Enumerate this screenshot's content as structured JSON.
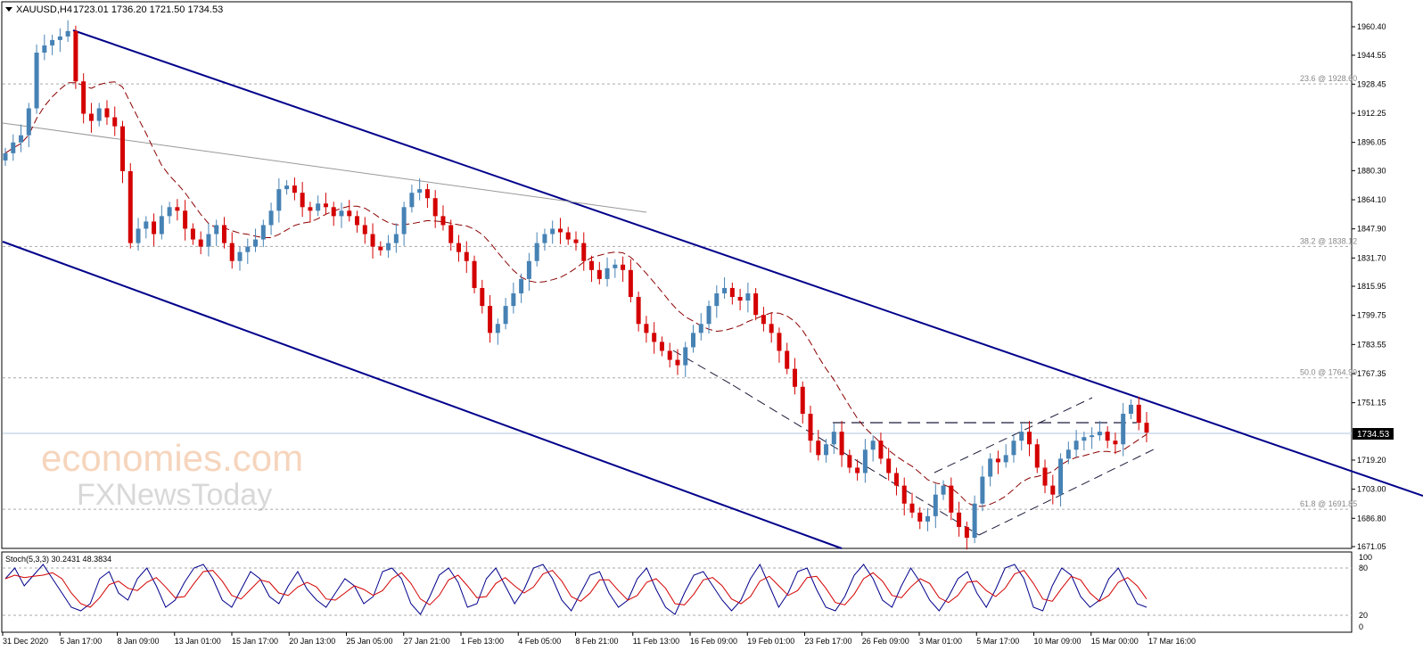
{
  "header": {
    "symbol_tf": "XAUUSD,H4",
    "ohlc": "1723.01 1736.20 1721.50 1734.53"
  },
  "colors": {
    "bull": "#4682b4",
    "bear": "#d40000",
    "channel": "#00008b",
    "ma": "#8b0000",
    "stoch_main": "#00008b",
    "stoch_signal": "#d40000",
    "fib_grid": "#aaaaaa",
    "price_tag_bg": "#000000"
  },
  "price_axis": {
    "ticks": [
      "1960.40",
      "1944.55",
      "1928.45",
      "1912.25",
      "1896.05",
      "1880.30",
      "1864.10",
      "1847.90",
      "1831.70",
      "1815.95",
      "1799.75",
      "1783.55",
      "1767.35",
      "1751.15",
      "1719.20",
      "1703.00",
      "1686.80",
      "1671.05"
    ],
    "current_price": "1734.53"
  },
  "fib_labels": [
    {
      "label": "23.6 @ 1928.60",
      "price": 1928.6
    },
    {
      "label": "38.2 @ 1838.12",
      "price": 1838.12
    },
    {
      "label": "50.0 @ 1764.99",
      "price": 1764.99
    },
    {
      "label": "61.8 @ 1691.85",
      "price": 1691.85
    }
  ],
  "time_axis": {
    "labels": [
      "31 Dec 2020",
      "5 Jan 17:00",
      "8 Jan 09:00",
      "13 Jan 01:00",
      "15 Jan 17:00",
      "20 Jan 13:00",
      "25 Jan 05:00",
      "27 Jan 21:00",
      "1 Feb 13:00",
      "4 Feb 05:00",
      "8 Feb 21:00",
      "11 Feb 13:00",
      "16 Feb 09:00",
      "19 Feb 01:00",
      "23 Feb 17:00",
      "26 Feb 09:00",
      "3 Mar 01:00",
      "5 Mar 17:00",
      "10 Mar 09:00",
      "15 Mar 00:00",
      "17 Mar 16:00"
    ]
  },
  "stoch": {
    "label": "Stoch(5,3,3) 30.2431 48.3834",
    "axis_ticks": [
      "100",
      "80",
      "20",
      "0"
    ]
  },
  "watermark": {
    "line1": "economies.com",
    "line2": "FXNewsToday"
  },
  "chart_data": {
    "type": "candlestick",
    "symbol": "XAUUSD",
    "timeframe": "H4",
    "ylim": [
      1671.05,
      1968.0
    ],
    "closes": [
      1890,
      1896,
      1900,
      1915,
      1946,
      1950,
      1953,
      1955,
      1958,
      1930,
      1912,
      1908,
      1915,
      1910,
      1905,
      1880,
      1840,
      1848,
      1852,
      1845,
      1855,
      1860,
      1858,
      1848,
      1842,
      1838,
      1845,
      1850,
      1840,
      1830,
      1835,
      1838,
      1842,
      1850,
      1858,
      1870,
      1872,
      1868,
      1860,
      1858,
      1862,
      1860,
      1855,
      1858,
      1855,
      1850,
      1845,
      1838,
      1836,
      1840,
      1845,
      1860,
      1868,
      1870,
      1865,
      1855,
      1850,
      1840,
      1835,
      1830,
      1815,
      1805,
      1790,
      1795,
      1805,
      1812,
      1820,
      1830,
      1840,
      1845,
      1848,
      1846,
      1842,
      1840,
      1830,
      1825,
      1820,
      1826,
      1828,
      1825,
      1810,
      1795,
      1790,
      1785,
      1780,
      1775,
      1772,
      1782,
      1790,
      1795,
      1805,
      1812,
      1815,
      1810,
      1808,
      1812,
      1800,
      1795,
      1790,
      1780,
      1770,
      1760,
      1745,
      1730,
      1722,
      1728,
      1735,
      1722,
      1715,
      1712,
      1725,
      1730,
      1720,
      1712,
      1705,
      1695,
      1690,
      1685,
      1688,
      1700,
      1705,
      1690,
      1682,
      1676,
      1695,
      1710,
      1720,
      1718,
      1722,
      1730,
      1735,
      1728,
      1715,
      1705,
      1700,
      1720,
      1725,
      1730,
      1732,
      1733,
      1735,
      1730,
      1728,
      1745,
      1750,
      1740,
      1734.53
    ],
    "sma_note": "dashed moving average overlay",
    "stoch_main": [
      70,
      85,
      60,
      75,
      90,
      70,
      50,
      30,
      25,
      35,
      70,
      80,
      50,
      40,
      70,
      85,
      60,
      30,
      40,
      65,
      85,
      90,
      70,
      40,
      30,
      55,
      80,
      70,
      45,
      35,
      60,
      80,
      55,
      40,
      30,
      50,
      70,
      60,
      35,
      45,
      80,
      85,
      70,
      35,
      20,
      45,
      75,
      85,
      65,
      30,
      35,
      70,
      85,
      60,
      35,
      55,
      85,
      90,
      70,
      40,
      25,
      50,
      75,
      80,
      50,
      30,
      40,
      70,
      85,
      55,
      30,
      20,
      50,
      75,
      80,
      60,
      40,
      25,
      40,
      70,
      90,
      60,
      30,
      50,
      80,
      85,
      55,
      30,
      25,
      45,
      75,
      90,
      70,
      40,
      30,
      60,
      85,
      65,
      40,
      25,
      45,
      70,
      80,
      50,
      30,
      55,
      85,
      90,
      70,
      30,
      25,
      60,
      85,
      75,
      45,
      30,
      40,
      70,
      85,
      60,
      35,
      30
    ]
  }
}
